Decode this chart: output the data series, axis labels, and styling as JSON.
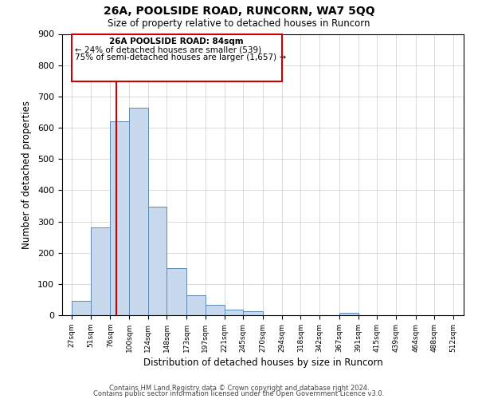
{
  "title": "26A, POOLSIDE ROAD, RUNCORN, WA7 5QQ",
  "subtitle": "Size of property relative to detached houses in Runcorn",
  "xlabel": "Distribution of detached houses by size in Runcorn",
  "ylabel": "Number of detached properties",
  "bar_color": "#c9d9ed",
  "bar_edge_color": "#5b8ab5",
  "vline_x": 84,
  "vline_color": "#cc0000",
  "annotation_title": "26A POOLSIDE ROAD: 84sqm",
  "annotation_line1": "← 24% of detached houses are smaller (539)",
  "annotation_line2": "75% of semi-detached houses are larger (1,657) →",
  "annotation_box_color": "#cc0000",
  "ylim": [
    0,
    900
  ],
  "yticks": [
    0,
    100,
    200,
    300,
    400,
    500,
    600,
    700,
    800,
    900
  ],
  "bin_edges": [
    27,
    51,
    76,
    100,
    124,
    148,
    173,
    197,
    221,
    245,
    270,
    294,
    318,
    342,
    367,
    391,
    415,
    439,
    464,
    488,
    512
  ],
  "bin_counts": [
    45,
    280,
    620,
    665,
    348,
    150,
    65,
    32,
    18,
    12,
    0,
    0,
    0,
    0,
    8,
    0,
    0,
    0,
    0,
    0
  ],
  "footer_line1": "Contains HM Land Registry data © Crown copyright and database right 2024.",
  "footer_line2": "Contains public sector information licensed under the Open Government Licence v3.0.",
  "background_color": "#ffffff",
  "grid_color": "#cccccc",
  "xlim_left": 15,
  "xlim_right": 525
}
